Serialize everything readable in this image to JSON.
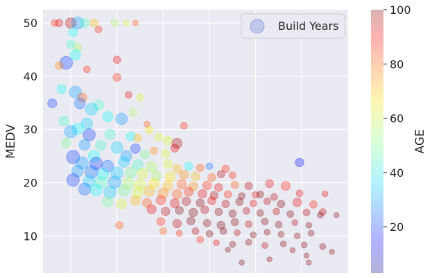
{
  "chart_data": {
    "type": "scatter",
    "title": "",
    "xlabel": "",
    "ylabel": "MEDV",
    "xlim": [
      -1.2,
      12.0
    ],
    "ylim": [
      3,
      52.5
    ],
    "yticks": [
      10,
      20,
      30,
      40,
      50
    ],
    "xticks_hidden": [
      0,
      2,
      4,
      6,
      8,
      10
    ],
    "grid": true,
    "legend": {
      "label": "Build Years",
      "placement": "top-right"
    },
    "colorbar": {
      "label": "AGE",
      "colormap": "jet",
      "alpha": 0.3,
      "min": 2.9,
      "max": 100,
      "ticks": [
        20,
        40,
        60,
        80,
        100
      ]
    },
    "size_note": "marker size = population / 100",
    "series": [
      {
        "name": "Build Years",
        "points": [
          [
            0.0,
            50.0,
            95,
            1200
          ],
          [
            0.3,
            50.0,
            30,
            1600
          ],
          [
            0.6,
            50.0,
            45,
            900
          ],
          [
            1.0,
            50.0,
            70,
            700
          ],
          [
            -0.7,
            50.0,
            85,
            500
          ],
          [
            1.9,
            50.0,
            55,
            600
          ],
          [
            2.4,
            50.0,
            60,
            400
          ],
          [
            2.8,
            50.0,
            80,
            350
          ],
          [
            -0.5,
            50.0,
            90,
            600
          ],
          [
            0.1,
            48.3,
            40,
            900
          ],
          [
            1.2,
            48.8,
            85,
            500
          ],
          [
            0.0,
            46.0,
            45,
            800
          ],
          [
            0.3,
            45.4,
            55,
            700
          ],
          [
            0.2,
            44.0,
            40,
            1300
          ],
          [
            -0.2,
            42.5,
            20,
            1800
          ],
          [
            -0.5,
            42.0,
            75,
            700
          ],
          [
            0.7,
            41.3,
            85,
            500
          ],
          [
            2.0,
            43.1,
            90,
            600
          ],
          [
            2.0,
            39.8,
            85,
            700
          ],
          [
            -0.4,
            37.6,
            40,
            900
          ],
          [
            0.2,
            37.0,
            30,
            1600
          ],
          [
            0.5,
            36.0,
            80,
            900
          ],
          [
            -0.8,
            34.9,
            20,
            900
          ],
          [
            0.4,
            34.9,
            25,
            1300
          ],
          [
            1.2,
            34.6,
            45,
            1100
          ],
          [
            0.9,
            33.8,
            35,
            1600
          ],
          [
            1.6,
            32.4,
            40,
            1200
          ],
          [
            2.2,
            32.0,
            30,
            1500
          ],
          [
            2.7,
            33.2,
            55,
            700
          ],
          [
            3.0,
            36.0,
            60,
            600
          ],
          [
            2.5,
            36.5,
            90,
            500
          ],
          [
            -0.3,
            31.6,
            45,
            1100
          ],
          [
            0.7,
            31.1,
            35,
            1400
          ],
          [
            0.3,
            30.1,
            40,
            1500
          ],
          [
            0.0,
            29.6,
            30,
            1700
          ],
          [
            0.8,
            29.0,
            20,
            1600
          ],
          [
            1.7,
            29.1,
            45,
            1200
          ],
          [
            2.6,
            28.7,
            40,
            900
          ],
          [
            2.9,
            28.4,
            70,
            700
          ],
          [
            3.4,
            29.9,
            65,
            600
          ],
          [
            3.8,
            28.6,
            60,
            700
          ],
          [
            4.2,
            27.9,
            60,
            900
          ],
          [
            4.9,
            30.7,
            85,
            500
          ],
          [
            3.3,
            31.0,
            80,
            400
          ],
          [
            -0.2,
            27.5,
            50,
            1000
          ],
          [
            0.6,
            27.1,
            30,
            1300
          ],
          [
            1.3,
            27.0,
            45,
            1200
          ],
          [
            2.0,
            26.6,
            35,
            1500
          ],
          [
            2.8,
            26.4,
            20,
            1000
          ],
          [
            1.0,
            25.0,
            40,
            1400
          ],
          [
            0.1,
            24.8,
            20,
            1900
          ],
          [
            2.4,
            25.0,
            30,
            1300
          ],
          [
            3.2,
            25.3,
            50,
            900
          ],
          [
            4.1,
            25.5,
            60,
            800
          ],
          [
            4.5,
            26.5,
            90,
            700
          ],
          [
            3.6,
            26.0,
            75,
            600
          ],
          [
            0.5,
            23.7,
            30,
            1600
          ],
          [
            1.1,
            23.6,
            20,
            1700
          ],
          [
            1.6,
            23.1,
            25,
            1500
          ],
          [
            2.3,
            23.9,
            35,
            1300
          ],
          [
            2.9,
            23.4,
            45,
            1200
          ],
          [
            3.5,
            23.0,
            55,
            1100
          ],
          [
            4.2,
            23.5,
            60,
            900
          ],
          [
            4.6,
            22.6,
            70,
            800
          ],
          [
            5.1,
            23.1,
            40,
            700
          ],
          [
            5.6,
            22.8,
            80,
            600
          ],
          [
            6.0,
            23.1,
            25,
            500
          ],
          [
            6.7,
            22.6,
            85,
            600
          ],
          [
            0.3,
            22.2,
            30,
            1500
          ],
          [
            0.9,
            22.0,
            25,
            1800
          ],
          [
            1.4,
            21.6,
            40,
            1400
          ],
          [
            2.0,
            21.8,
            35,
            1600
          ],
          [
            2.6,
            21.9,
            50,
            1300
          ],
          [
            3.1,
            21.7,
            60,
            1200
          ],
          [
            3.7,
            21.3,
            55,
            1000
          ],
          [
            4.3,
            21.1,
            65,
            1100
          ],
          [
            4.9,
            21.5,
            75,
            900
          ],
          [
            5.4,
            21.2,
            70,
            800
          ],
          [
            6.1,
            21.0,
            80,
            700
          ],
          [
            6.5,
            21.6,
            95,
            600
          ],
          [
            7.0,
            21.4,
            85,
            500
          ],
          [
            0.1,
            20.5,
            20,
            1700
          ],
          [
            0.8,
            20.3,
            35,
            1500
          ],
          [
            1.3,
            20.0,
            45,
            1600
          ],
          [
            1.9,
            20.1,
            30,
            1700
          ],
          [
            2.5,
            19.9,
            55,
            1400
          ],
          [
            3.0,
            19.6,
            60,
            1300
          ],
          [
            3.6,
            19.8,
            65,
            1200
          ],
          [
            4.2,
            19.4,
            70,
            1100
          ],
          [
            4.8,
            19.7,
            80,
            1000
          ],
          [
            5.3,
            19.3,
            75,
            900
          ],
          [
            5.9,
            19.5,
            85,
            800
          ],
          [
            6.4,
            19.1,
            90,
            700
          ],
          [
            7.1,
            19.6,
            80,
            600
          ],
          [
            7.7,
            19.4,
            95,
            600
          ],
          [
            8.6,
            19.8,
            90,
            700
          ],
          [
            9.3,
            19.4,
            85,
            900
          ],
          [
            0.6,
            18.8,
            25,
            1600
          ],
          [
            1.1,
            18.6,
            40,
            1500
          ],
          [
            1.7,
            18.2,
            35,
            1700
          ],
          [
            2.3,
            18.5,
            50,
            1400
          ],
          [
            2.9,
            18.1,
            60,
            1300
          ],
          [
            3.4,
            18.4,
            70,
            1200
          ],
          [
            4.0,
            18.0,
            75,
            1100
          ],
          [
            4.6,
            17.8,
            80,
            1000
          ],
          [
            5.1,
            18.3,
            85,
            900
          ],
          [
            5.7,
            17.9,
            90,
            800
          ],
          [
            6.2,
            17.6,
            95,
            700
          ],
          [
            6.8,
            17.8,
            85,
            600
          ],
          [
            7.4,
            17.5,
            100,
            500
          ],
          [
            8.0,
            17.7,
            90,
            500
          ],
          [
            8.8,
            17.3,
            95,
            500
          ],
          [
            1.6,
            16.4,
            50,
            1200
          ],
          [
            2.2,
            16.0,
            60,
            1100
          ],
          [
            2.8,
            16.6,
            70,
            1000
          ],
          [
            3.3,
            16.2,
            80,
            900
          ],
          [
            3.9,
            16.7,
            85,
            1000
          ],
          [
            4.5,
            16.1,
            90,
            900
          ],
          [
            5.0,
            16.5,
            95,
            800
          ],
          [
            5.6,
            16.2,
            100,
            700
          ],
          [
            6.1,
            16.6,
            90,
            700
          ],
          [
            6.7,
            16.0,
            95,
            600
          ],
          [
            7.3,
            16.4,
            100,
            600
          ],
          [
            7.9,
            16.1,
            90,
            500
          ],
          [
            8.5,
            16.5,
            95,
            500
          ],
          [
            9.1,
            16.0,
            100,
            600
          ],
          [
            9.8,
            16.3,
            90,
            800
          ],
          [
            10.5,
            15.9,
            85,
            600
          ],
          [
            3.5,
            15.0,
            90,
            900
          ],
          [
            4.1,
            14.6,
            95,
            800
          ],
          [
            4.7,
            14.8,
            100,
            700
          ],
          [
            5.3,
            14.4,
            100,
            800
          ],
          [
            5.8,
            14.9,
            95,
            700
          ],
          [
            6.4,
            14.5,
            100,
            600
          ],
          [
            7.0,
            14.2,
            100,
            600
          ],
          [
            7.6,
            14.7,
            95,
            500
          ],
          [
            8.2,
            14.3,
            100,
            500
          ],
          [
            8.9,
            14.6,
            95,
            500
          ],
          [
            9.5,
            14.1,
            100,
            500
          ],
          [
            10.2,
            14.4,
            95,
            500
          ],
          [
            10.8,
            13.9,
            100,
            400
          ],
          [
            11.5,
            13.9,
            100,
            300
          ],
          [
            2.1,
            12.0,
            80,
            600
          ],
          [
            3.9,
            12.7,
            85,
            700
          ],
          [
            4.6,
            12.3,
            95,
            800
          ],
          [
            5.2,
            12.8,
            100,
            700
          ],
          [
            5.9,
            12.4,
            100,
            600
          ],
          [
            6.5,
            12.0,
            100,
            700
          ],
          [
            7.1,
            12.6,
            100,
            600
          ],
          [
            7.7,
            12.2,
            95,
            500
          ],
          [
            8.4,
            12.7,
            100,
            500
          ],
          [
            9.0,
            12.1,
            100,
            500
          ],
          [
            9.7,
            12.5,
            95,
            400
          ],
          [
            10.3,
            12.0,
            100,
            400
          ],
          [
            4.0,
            10.9,
            80,
            500
          ],
          [
            4.7,
            10.5,
            85,
            400
          ],
          [
            5.4,
            10.9,
            95,
            500
          ],
          [
            6.0,
            10.4,
            100,
            500
          ],
          [
            6.6,
            10.9,
            100,
            500
          ],
          [
            7.2,
            10.6,
            95,
            400
          ],
          [
            7.9,
            10.2,
            100,
            400
          ],
          [
            8.5,
            10.7,
            100,
            400
          ],
          [
            9.1,
            10.3,
            100,
            400
          ],
          [
            9.8,
            10.0,
            100,
            400
          ],
          [
            10.4,
            10.5,
            100,
            400
          ],
          [
            5.6,
            9.3,
            85,
            500
          ],
          [
            6.3,
            8.7,
            90,
            400
          ],
          [
            7.0,
            8.4,
            100,
            400
          ],
          [
            7.7,
            8.8,
            100,
            400
          ],
          [
            8.4,
            8.2,
            95,
            400
          ],
          [
            9.2,
            8.5,
            100,
            400
          ],
          [
            10.1,
            8.3,
            100,
            400
          ],
          [
            10.9,
            8.0,
            100,
            400
          ],
          [
            11.3,
            7.0,
            100,
            300
          ],
          [
            6.8,
            7.4,
            100,
            300
          ],
          [
            7.4,
            5.0,
            100,
            300
          ],
          [
            8.6,
            5.6,
            100,
            300
          ],
          [
            9.6,
            7.3,
            100,
            300
          ],
          [
            10.3,
            5.0,
            100,
            300
          ],
          [
            10.2,
            6.3,
            100,
            300
          ],
          [
            9.9,
            23.8,
            15,
            800
          ],
          [
            4.6,
            27.4,
            95,
            1100
          ],
          [
            8.2,
            17.8,
            100,
            500
          ],
          [
            9.9,
            18.0,
            90,
            500
          ],
          [
            10.9,
            14.5,
            95,
            500
          ],
          [
            11.0,
            17.9,
            90,
            400
          ]
        ]
      }
    ]
  }
}
